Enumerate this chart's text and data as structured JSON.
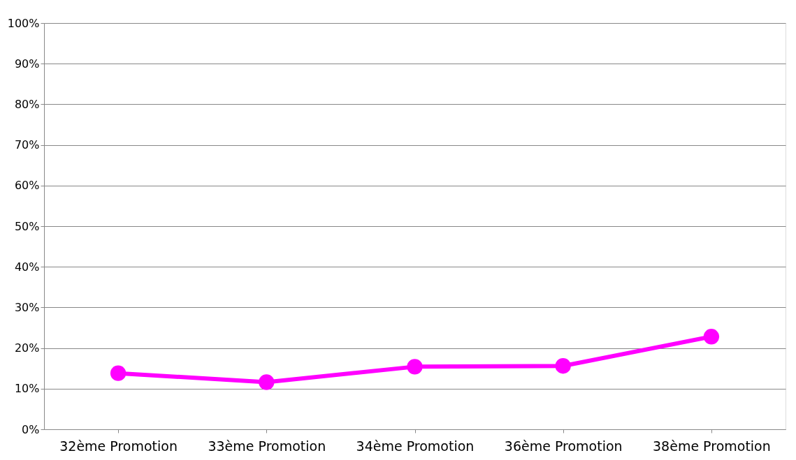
{
  "chart_data": {
    "type": "line",
    "categories": [
      "32ème Promotion",
      "33ème Promotion",
      "34ème Promotion",
      "36ème Promotion",
      "38ème Promotion"
    ],
    "series": [
      {
        "color": "#ff00ff",
        "values": [
          13.8,
          11.6,
          15.4,
          15.6,
          22.8
        ]
      }
    ],
    "ylim": [
      0,
      100
    ],
    "yticks": [
      {
        "value": 0,
        "label": "0%"
      },
      {
        "value": 10,
        "label": "10%"
      },
      {
        "value": 20,
        "label": "20%"
      },
      {
        "value": 30,
        "label": "30%"
      },
      {
        "value": 40,
        "label": "40%"
      },
      {
        "value": 50,
        "label": "50%"
      },
      {
        "value": 60,
        "label": "60%"
      },
      {
        "value": 70,
        "label": "70%"
      },
      {
        "value": 80,
        "label": "80%"
      },
      {
        "value": 90,
        "label": "90%"
      },
      {
        "value": 100,
        "label": "100%"
      }
    ],
    "grid": "y",
    "marker": "circle",
    "line_style": "solid",
    "legend": false
  }
}
